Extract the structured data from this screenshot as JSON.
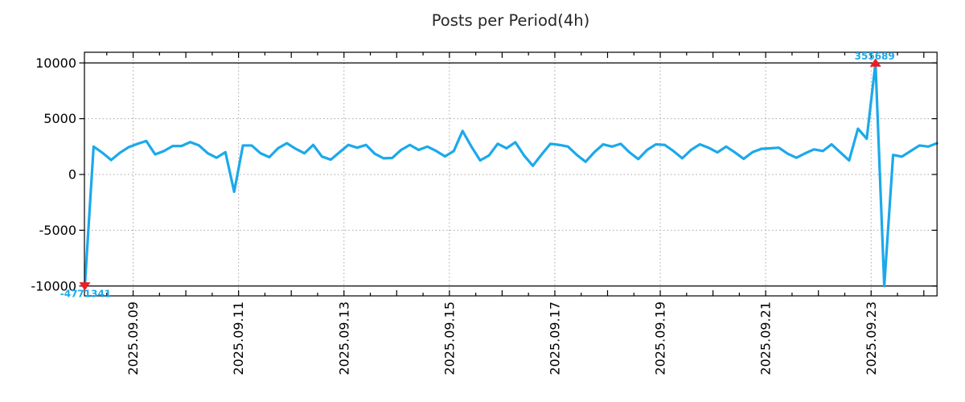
{
  "colors": {
    "line": "#1ba9ea",
    "marker_red": "#ed1c24",
    "annotation_text": "#1ba9ea",
    "grid_dotted": "#a6a6a6",
    "axis": "#000000",
    "title": "#262626",
    "background": "#ffffff"
  },
  "chart_data": {
    "type": "line",
    "title": "Posts per Period(4h)",
    "x_start": "2025-09-08T02:00",
    "x_step_hours": 4,
    "values": [
      -4771341,
      2500,
      1950,
      1300,
      1950,
      2450,
      2750,
      3000,
      1800,
      2100,
      2550,
      2550,
      2900,
      2600,
      1900,
      1500,
      2000,
      -1550,
      2600,
      2600,
      1900,
      1550,
      2350,
      2800,
      2300,
      1900,
      2650,
      1600,
      1330,
      2000,
      2650,
      2400,
      2650,
      1860,
      1450,
      1480,
      2200,
      2650,
      2200,
      2500,
      2100,
      1620,
      2100,
      3900,
      2500,
      1260,
      1700,
      2750,
      2350,
      2890,
      1700,
      780,
      1800,
      2750,
      2650,
      2500,
      1750,
      1140,
      2000,
      2700,
      2500,
      2750,
      1980,
      1380,
      2200,
      2700,
      2650,
      2100,
      1450,
      2200,
      2700,
      2400,
      1980,
      2500,
      1980,
      1400,
      2000,
      2300,
      2340,
      2400,
      1860,
      1500,
      1900,
      2250,
      2100,
      2700,
      1980,
      1260,
      4100,
      3200,
      355689,
      -10000,
      1750,
      1600,
      2100,
      2600,
      2500,
      2800
    ],
    "ylim": [
      -10000,
      10000
    ],
    "ytick_values": [
      10000,
      5000,
      0,
      -5000,
      -10000
    ],
    "ytick_labels": [
      "10000",
      "5000",
      "0",
      "-5000",
      "-10000"
    ],
    "xtick_labels": [
      "2025.09.09",
      "2025.09.11",
      "2025.09.13",
      "2025.09.15",
      "2025.09.17",
      "2025.09.19",
      "2025.09.21",
      "2025.09.23"
    ],
    "grid": true,
    "legend": "none",
    "annotations": {
      "max": {
        "label": "355689",
        "value": 355689,
        "point_index": 90,
        "marker": "triangle-up"
      },
      "min": {
        "label": "-4771341",
        "value": -4771341,
        "point_index": 0,
        "marker": "triangle-down"
      }
    }
  }
}
